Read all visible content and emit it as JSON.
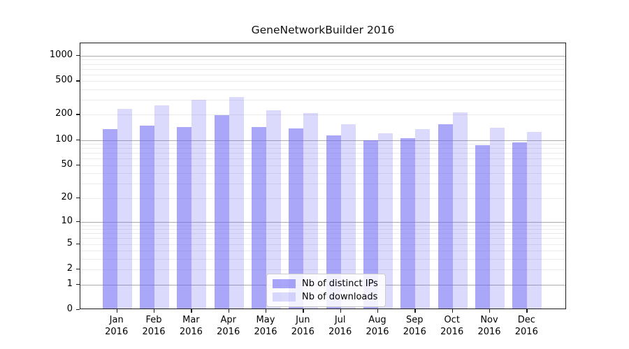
{
  "chart_data": {
    "type": "bar",
    "title": "GeneNetworkBuilder 2016",
    "categories": [
      "Jan 2016",
      "Feb 2016",
      "Mar 2016",
      "Apr 2016",
      "May 2016",
      "Jun 2016",
      "Jul 2016",
      "Aug 2016",
      "Sep 2016",
      "Oct 2016",
      "Nov 2016",
      "Dec 2016"
    ],
    "x_months": [
      "Jan",
      "Feb",
      "Mar",
      "Apr",
      "May",
      "Jun",
      "Jul",
      "Aug",
      "Sep",
      "Oct",
      "Nov",
      "Dec"
    ],
    "x_year": "2016",
    "series": [
      {
        "name": "Nb of distinct IPs",
        "key": "distinct-ips",
        "color": "rgba(106,101,242,0.57)",
        "values": [
          130,
          142,
          138,
          190,
          137,
          133,
          110,
          96,
          101,
          148,
          83,
          90
        ]
      },
      {
        "name": "Nb of downloads",
        "key": "downloads",
        "color": "rgba(106,101,242,0.24)",
        "values": [
          228,
          247,
          287,
          312,
          217,
          201,
          149,
          116,
          130,
          207,
          134,
          121
        ]
      }
    ],
    "yticks": [
      0,
      1,
      2,
      5,
      10,
      20,
      50,
      100,
      200,
      500,
      1000
    ],
    "ylim": [
      0,
      1400
    ],
    "yscale": "log10(1+y)",
    "xlabel": "",
    "ylabel": "",
    "grid": {
      "major_lines": [
        1,
        10,
        100,
        1000
      ],
      "minor_lines": [
        2,
        3,
        4,
        5,
        6,
        7,
        8,
        9,
        20,
        30,
        40,
        50,
        60,
        70,
        80,
        90,
        200,
        300,
        400,
        500,
        600,
        700,
        800,
        900
      ]
    },
    "legend": {
      "position": "lower-center"
    },
    "colors": {
      "grid_major": "#ababab",
      "grid_minor": "#ebebeb",
      "spine": "#1c1c1c",
      "background": "#ffffff"
    }
  }
}
